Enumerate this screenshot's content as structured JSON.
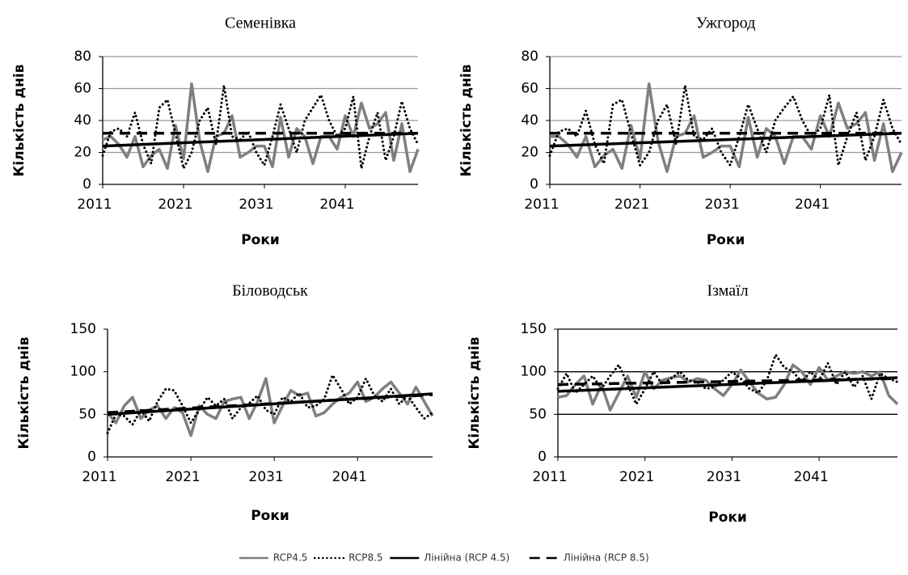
{
  "chart_data": [
    {
      "type": "line",
      "title": "Семенівка",
      "xlabel": "Роки",
      "ylabel": "Кількість днів",
      "x": [
        2011,
        2012,
        2013,
        2014,
        2015,
        2016,
        2017,
        2018,
        2019,
        2020,
        2021,
        2022,
        2023,
        2024,
        2025,
        2026,
        2027,
        2028,
        2029,
        2030,
        2031,
        2032,
        2033,
        2034,
        2035,
        2036,
        2037,
        2038,
        2039,
        2040,
        2041,
        2042,
        2043,
        2044,
        2045,
        2046,
        2047,
        2048,
        2049,
        2050
      ],
      "xlim": [
        2011,
        2050
      ],
      "xticks": [
        2011,
        2021,
        2031,
        2041
      ],
      "ylim": [
        0,
        80
      ],
      "yticks": [
        0,
        20,
        40,
        60,
        80
      ],
      "grid": true,
      "grid_color": "#999999",
      "series": [
        {
          "name": "RCP4.5",
          "color": "#7f7f7f",
          "style": "solid",
          "values": [
            28,
            30,
            25,
            17,
            30,
            11,
            18,
            22,
            10,
            37,
            16,
            63,
            27,
            8,
            30,
            32,
            43,
            17,
            20,
            24,
            24,
            11,
            42,
            17,
            35,
            30,
            13,
            30,
            30,
            22,
            43,
            30,
            51,
            35,
            38,
            45,
            15,
            38,
            8,
            22
          ]
        },
        {
          "name": "RCP8.5",
          "color": "#000000",
          "style": "dotted",
          "values": [
            18,
            33,
            35,
            30,
            45,
            25,
            13,
            48,
            53,
            32,
            10,
            20,
            40,
            48,
            25,
            62,
            30,
            28,
            33,
            20,
            12,
            30,
            50,
            35,
            20,
            40,
            48,
            56,
            40,
            30,
            35,
            55,
            10,
            30,
            45,
            15,
            30,
            52,
            35,
            25
          ]
        },
        {
          "name": "Лінійна (RCP 4.5)",
          "color": "#000000",
          "style": "trend",
          "x": [
            2011,
            2050
          ],
          "values": [
            24,
            32
          ]
        },
        {
          "name": "Лінійна (RCP 8.5)",
          "color": "#000000",
          "style": "dashed",
          "x": [
            2011,
            2050
          ],
          "values": [
            32,
            32
          ]
        }
      ]
    },
    {
      "type": "line",
      "title": "Ужгород",
      "xlabel": "Роки",
      "ylabel": "Кількість днів",
      "x": [
        2011,
        2012,
        2013,
        2014,
        2015,
        2016,
        2017,
        2018,
        2019,
        2020,
        2021,
        2022,
        2023,
        2024,
        2025,
        2026,
        2027,
        2028,
        2029,
        2030,
        2031,
        2032,
        2033,
        2034,
        2035,
        2036,
        2037,
        2038,
        2039,
        2040,
        2041,
        2042,
        2043,
        2044,
        2045,
        2046,
        2047,
        2048,
        2049,
        2050
      ],
      "xlim": [
        2011,
        2050
      ],
      "xticks": [
        2011,
        2021,
        2031,
        2041
      ],
      "ylim": [
        0,
        80
      ],
      "yticks": [
        0,
        20,
        40,
        60,
        80
      ],
      "grid": true,
      "grid_color": "#999999",
      "series": [
        {
          "color": "#7f7f7f",
          "style": "solid",
          "values": [
            30,
            30,
            25,
            17,
            30,
            11,
            18,
            22,
            10,
            37,
            16,
            63,
            27,
            8,
            30,
            32,
            43,
            17,
            20,
            24,
            24,
            11,
            42,
            17,
            35,
            30,
            13,
            30,
            30,
            22,
            43,
            30,
            51,
            35,
            38,
            45,
            15,
            38,
            8,
            20
          ]
        },
        {
          "color": "#000000",
          "style": "dotted",
          "values": [
            18,
            33,
            35,
            30,
            46,
            25,
            13,
            50,
            53,
            32,
            12,
            20,
            40,
            50,
            25,
            62,
            30,
            28,
            35,
            20,
            12,
            30,
            50,
            35,
            20,
            40,
            48,
            55,
            40,
            30,
            35,
            56,
            12,
            30,
            45,
            15,
            30,
            53,
            35,
            25
          ]
        },
        {
          "color": "#000000",
          "style": "trend",
          "x": [
            2011,
            2050
          ],
          "values": [
            24,
            32
          ]
        },
        {
          "color": "#000000",
          "style": "dashed",
          "x": [
            2011,
            2050
          ],
          "values": [
            32,
            32
          ]
        }
      ]
    },
    {
      "type": "line",
      "title": "Біловодськ",
      "xlabel": "Роки",
      "ylabel": "Кількість днів",
      "x": [
        2011,
        2012,
        2013,
        2014,
        2015,
        2016,
        2017,
        2018,
        2019,
        2020,
        2021,
        2022,
        2023,
        2024,
        2025,
        2026,
        2027,
        2028,
        2029,
        2030,
        2031,
        2032,
        2033,
        2034,
        2035,
        2036,
        2037,
        2038,
        2039,
        2040,
        2041,
        2042,
        2043,
        2044,
        2045,
        2046,
        2047,
        2048,
        2049,
        2050
      ],
      "xlim": [
        2011,
        2050
      ],
      "xticks": [
        2011,
        2021,
        2031,
        2041
      ],
      "ylim": [
        0,
        150
      ],
      "yticks": [
        0,
        50,
        100,
        150
      ],
      "grid": false,
      "grid_color": "#999999",
      "series": [
        {
          "color": "#7f7f7f",
          "style": "solid",
          "values": [
            52,
            40,
            60,
            70,
            45,
            55,
            60,
            45,
            58,
            52,
            25,
            60,
            50,
            45,
            65,
            68,
            70,
            45,
            65,
            92,
            40,
            60,
            78,
            72,
            75,
            48,
            52,
            62,
            70,
            75,
            88,
            65,
            70,
            80,
            88,
            75,
            62,
            82,
            65,
            48
          ]
        },
        {
          "color": "#000000",
          "style": "dotted",
          "values": [
            28,
            50,
            48,
            38,
            55,
            42,
            65,
            80,
            78,
            60,
            40,
            55,
            70,
            60,
            68,
            45,
            58,
            63,
            72,
            55,
            50,
            70,
            65,
            75,
            58,
            60,
            68,
            96,
            80,
            62,
            70,
            92,
            72,
            65,
            80,
            62,
            72,
            58,
            45,
            52
          ]
        },
        {
          "color": "#000000",
          "style": "trend",
          "x": [
            2011,
            2050
          ],
          "values": [
            50,
            74
          ]
        },
        {
          "color": "#000000",
          "style": "dashed",
          "x": [
            2011,
            2050
          ],
          "values": [
            52,
            73
          ]
        }
      ]
    },
    {
      "type": "line",
      "title": "Ізмаїл",
      "xlabel": "Роки",
      "ylabel": "Кількість днів",
      "x": [
        2011,
        2012,
        2013,
        2014,
        2015,
        2016,
        2017,
        2018,
        2019,
        2020,
        2021,
        2022,
        2023,
        2024,
        2025,
        2026,
        2027,
        2028,
        2029,
        2030,
        2031,
        2032,
        2033,
        2034,
        2035,
        2036,
        2037,
        2038,
        2039,
        2040,
        2041,
        2042,
        2043,
        2044,
        2045,
        2046,
        2047,
        2048,
        2049,
        2050
      ],
      "xlim": [
        2011,
        2050
      ],
      "xticks": [
        2011,
        2021,
        2031,
        2041
      ],
      "ylim": [
        0,
        150
      ],
      "yticks": [
        0,
        50,
        100,
        150
      ],
      "grid": true,
      "grid_color": "#000000",
      "series": [
        {
          "color": "#7f7f7f",
          "style": "solid",
          "values": [
            70,
            72,
            85,
            95,
            62,
            85,
            55,
            75,
            95,
            70,
            100,
            80,
            90,
            93,
            95,
            88,
            92,
            90,
            80,
            72,
            85,
            102,
            88,
            75,
            68,
            70,
            85,
            108,
            100,
            85,
            105,
            90,
            95,
            100,
            98,
            100,
            95,
            100,
            72,
            62
          ]
        },
        {
          "color": "#000000",
          "style": "dotted",
          "values": [
            80,
            98,
            75,
            85,
            95,
            80,
            95,
            108,
            85,
            62,
            80,
            100,
            85,
            92,
            100,
            90,
            88,
            80,
            82,
            90,
            100,
            92,
            80,
            75,
            90,
            120,
            105,
            100,
            88,
            100,
            90,
            110,
            85,
            100,
            82,
            95,
            68,
            98,
            92,
            88
          ]
        },
        {
          "color": "#000000",
          "style": "trend",
          "x": [
            2011,
            2050
          ],
          "values": [
            77,
            93
          ]
        },
        {
          "color": "#000000",
          "style": "dashed",
          "x": [
            2011,
            2050
          ],
          "values": [
            85,
            92
          ]
        }
      ]
    }
  ]
}
